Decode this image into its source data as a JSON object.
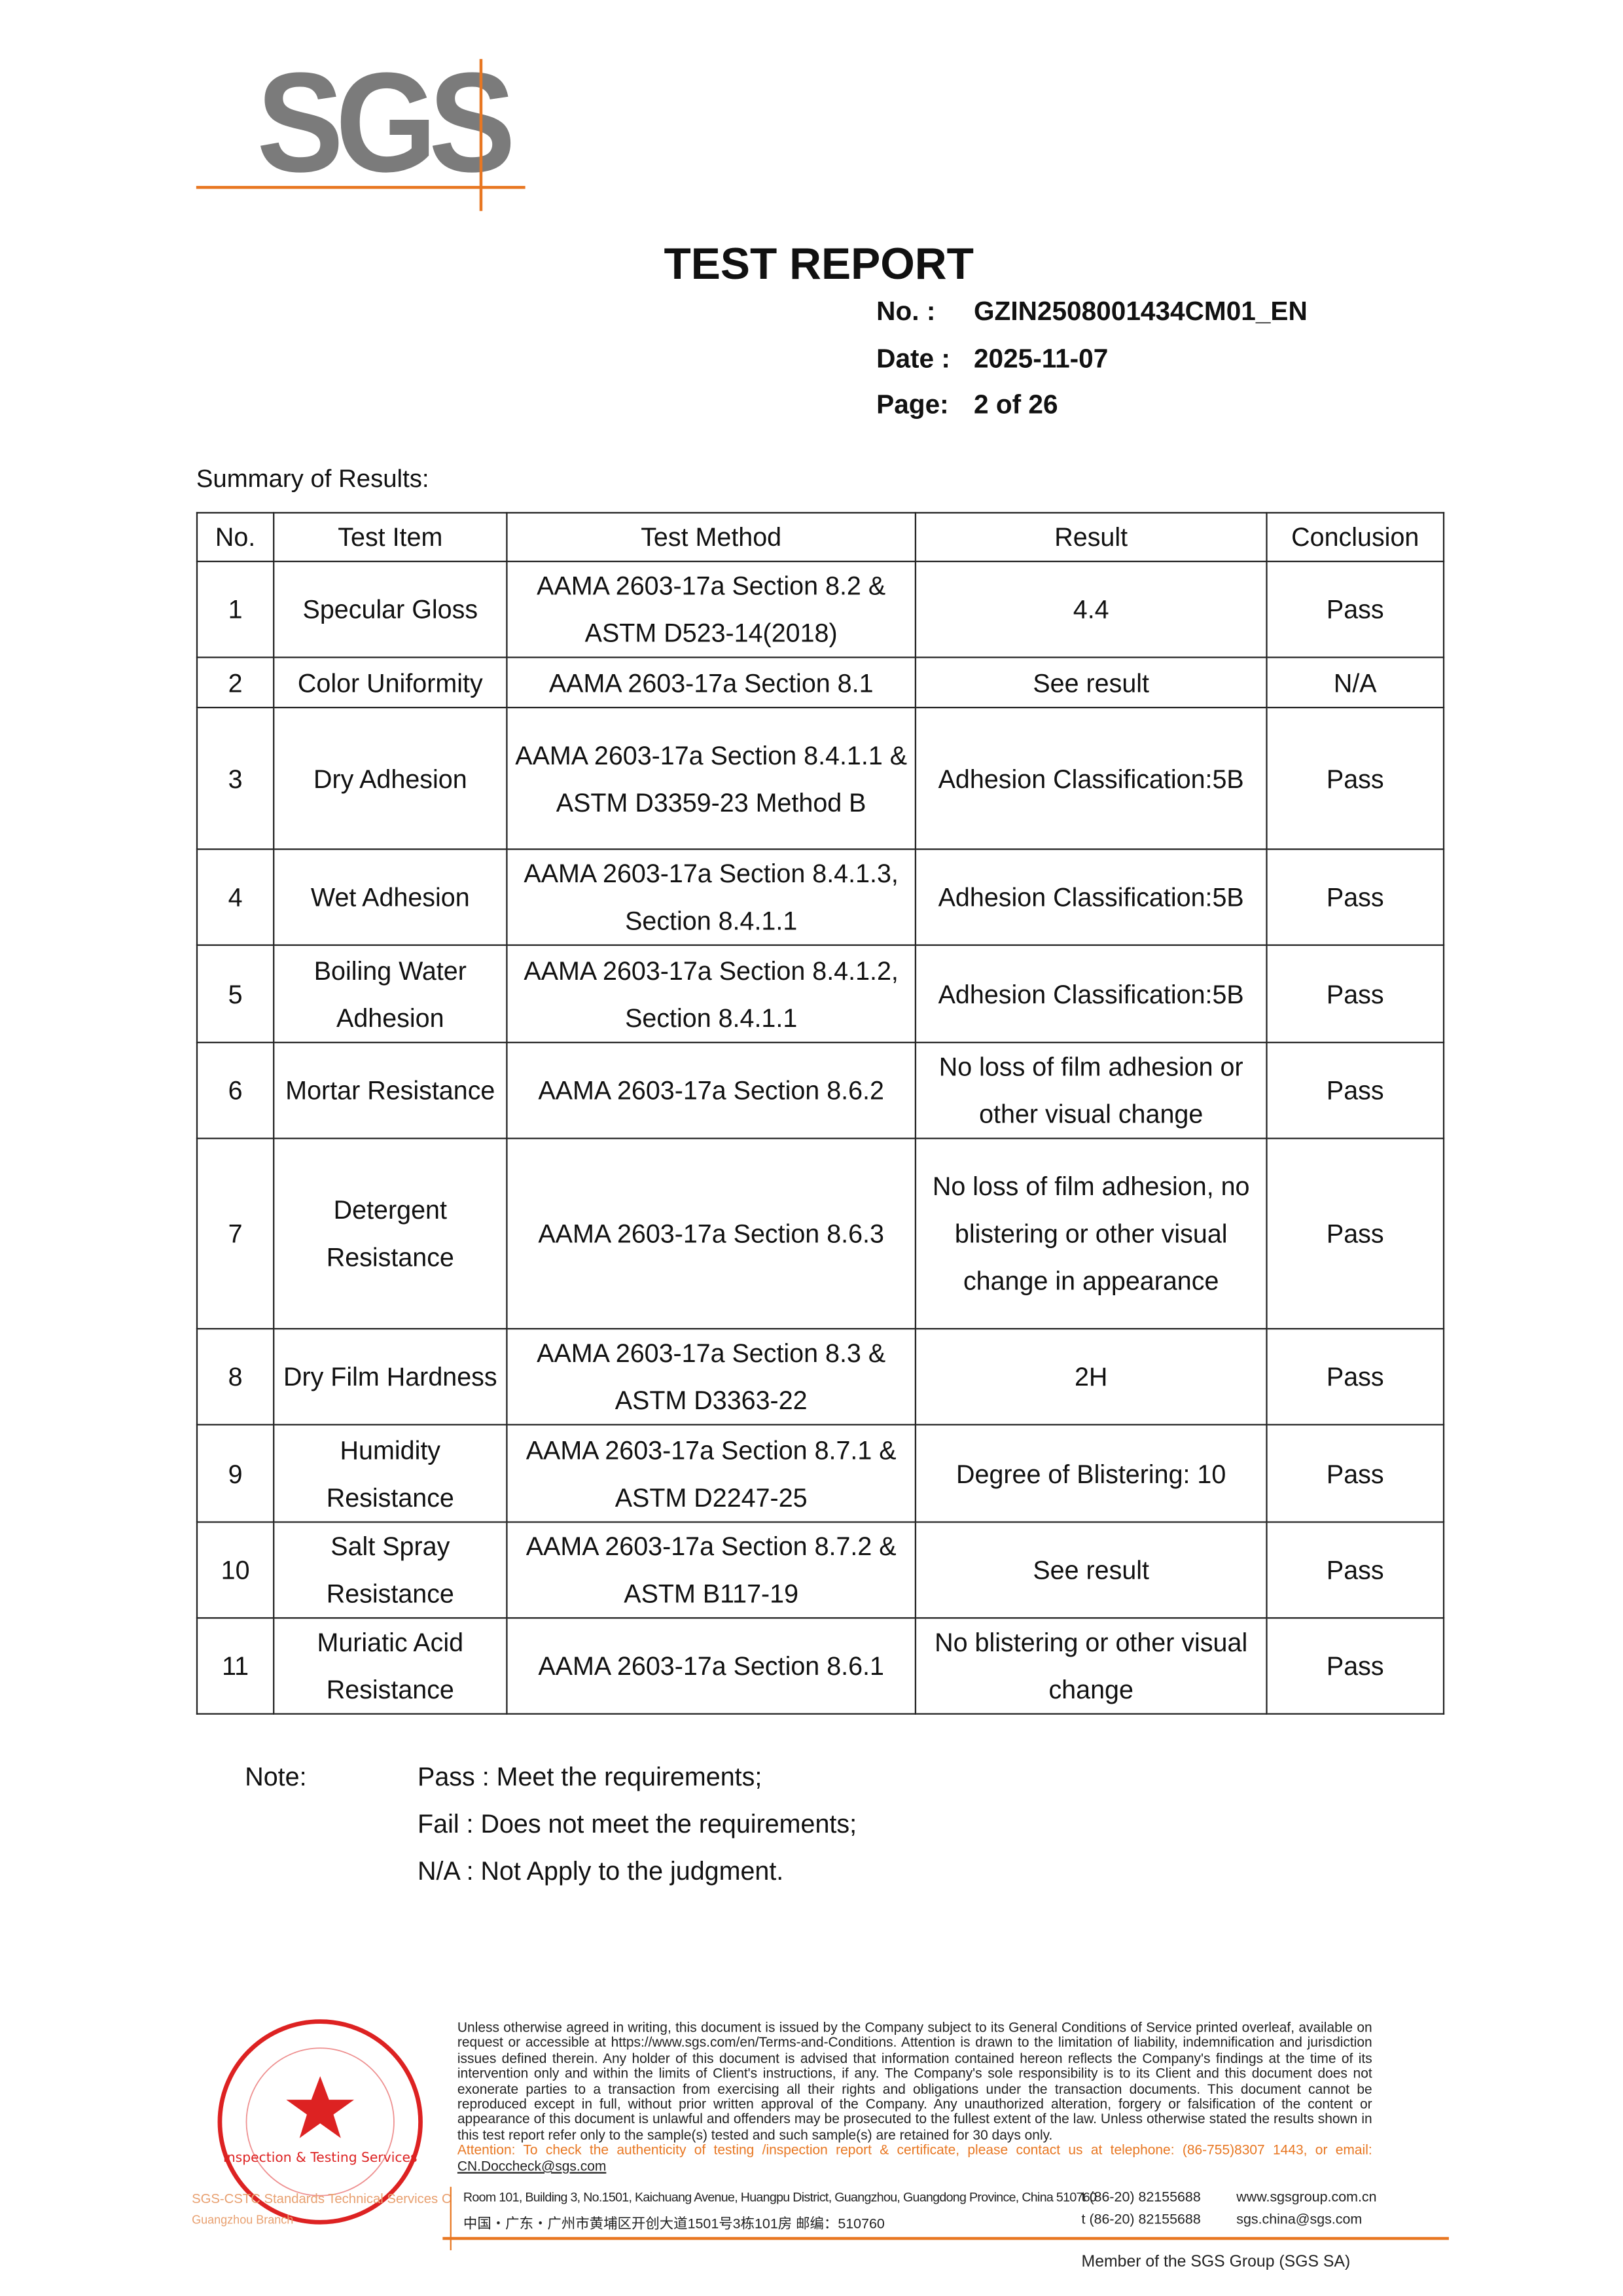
{
  "logo": {
    "text": "SGS",
    "accent": "#e87722"
  },
  "header": {
    "title": "TEST REPORT",
    "no_label": "No.  :",
    "no_value": "GZIN2508001434CM01_EN",
    "date_label": "Date :",
    "date_value": "2025-11-07",
    "page_label": "Page:",
    "page_value": "2 of  26"
  },
  "summary_label": "Summary of Results:",
  "table": {
    "headers": [
      "No.",
      "Test Item",
      "Test Method",
      "Result",
      "Conclusion"
    ],
    "rows": [
      {
        "no": "1",
        "item": "Specular Gloss",
        "method": "AAMA 2603-17a Section 8.2 & ASTM D523-14(2018)",
        "result": "4.4",
        "conclusion": "Pass"
      },
      {
        "no": "2",
        "item": "Color Uniformity",
        "method": "AAMA 2603-17a Section 8.1",
        "result": "See result",
        "conclusion": "N/A"
      },
      {
        "no": "3",
        "item": "Dry Adhesion",
        "method": "AAMA 2603-17a Section 8.4.1.1 & ASTM D3359-23 Method B",
        "result": "Adhesion Classification:5B",
        "conclusion": "Pass"
      },
      {
        "no": "4",
        "item": "Wet Adhesion",
        "method": "AAMA 2603-17a Section 8.4.1.3, Section 8.4.1.1",
        "result": "Adhesion Classification:5B",
        "conclusion": "Pass"
      },
      {
        "no": "5",
        "item": "Boiling Water Adhesion",
        "method": "AAMA 2603-17a Section 8.4.1.2, Section 8.4.1.1",
        "result": "Adhesion Classification:5B",
        "conclusion": "Pass"
      },
      {
        "no": "6",
        "item": "Mortar Resistance",
        "method": "AAMA 2603-17a Section 8.6.2",
        "result": "No loss of film adhesion or other visual change",
        "conclusion": "Pass"
      },
      {
        "no": "7",
        "item": "Detergent Resistance",
        "method": "AAMA 2603-17a Section 8.6.3",
        "result": "No loss of film adhesion, no blistering or other visual change in appearance",
        "conclusion": "Pass"
      },
      {
        "no": "8",
        "item": "Dry Film Hardness",
        "method": "AAMA 2603-17a Section 8.3 & ASTM D3363-22",
        "result": "2H",
        "conclusion": "Pass"
      },
      {
        "no": "9",
        "item": "Humidity Resistance",
        "method": "AAMA 2603-17a Section 8.7.1 & ASTM D2247-25",
        "result": "Degree of Blistering: 10",
        "conclusion": "Pass"
      },
      {
        "no": "10",
        "item": "Salt Spray Resistance",
        "method": "AAMA 2603-17a Section 8.7.2 & ASTM B117-19",
        "result": "See result",
        "conclusion": "Pass"
      },
      {
        "no": "11",
        "item": "Muriatic Acid Resistance",
        "method": "AAMA 2603-17a Section 8.6.1",
        "result": "No blistering or other visual change",
        "conclusion": "Pass"
      }
    ]
  },
  "note": {
    "label": "Note:",
    "lines": [
      "Pass : Meet the requirements;",
      "Fail : Does not meet the requirements;",
      "N/A : Not Apply to the judgment."
    ]
  },
  "footer": {
    "stamp_text": "SGS-CSTC Standards Technical Services Co.,Ltd. Guangzhou Branch",
    "disclaimer_pre": "Unless otherwise agreed in writing, this document is issued by the Company subject to its General Conditions of Service printed overleaf, available on request or accessible at ",
    "disclaimer_link": "https://www.sgs.com/en/Terms-and-Conditions.",
    "disclaimer_post": " Attention is drawn to the limitation of liability, indemnification and jurisdiction issues defined therein. Any holder of this document is advised that information contained hereon reflects the Company's findings at the time of its intervention only and within the limits of Client's instructions, if any. The Company's sole responsibility is to its Client and this document does not exonerate parties to a transaction from exercising all their rights and obligations under the transaction documents. This document cannot be reproduced except in full, without prior written approval of the Company. Any unauthorized alteration, forgery or falsification of the content or appearance of this document is unlawful and offenders may be prosecuted to the fullest extent of the law. Unless otherwise stated the results shown in this test report refer only to the sample(s) tested and such sample(s) are retained for 30 days only.",
    "attention": "Attention: To check the authenticity of testing /inspection report & certificate, please contact us at telephone: (86-755)8307 1443, or email: ",
    "attention_email": "CN.Doccheck@sgs.com",
    "address_en": "Room 101, Building 3, No.1501, Kaichuang Avenue, Huangpu District, Guangzhou, Guangdong Province, China  510760",
    "address_cn": "中国・广东・广州市黄埔区开创大道1501号3栋101房    邮编：510760",
    "tel1": "t (86-20) 82155688",
    "tel2": "t (86-20) 82155688",
    "web": "www.sgsgroup.com.cn",
    "email": "sgs.china@sgs.com",
    "member": "Member of the SGS Group (SGS SA)"
  }
}
